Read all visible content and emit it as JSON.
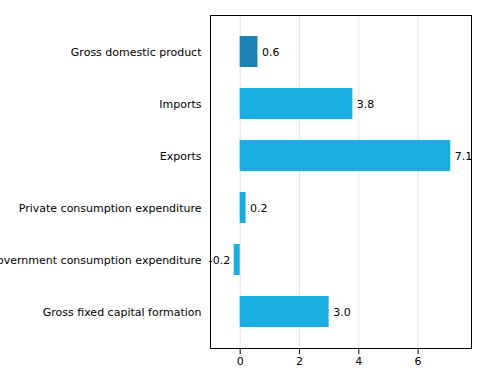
{
  "chart_data": {
    "type": "bar",
    "orientation": "horizontal",
    "categories": [
      "Gross fixed capital formation",
      "Government consumption expenditure",
      "Private consumption expenditure",
      "Exports",
      "Imports",
      "Gross domestic product"
    ],
    "values": [
      3.0,
      -0.2,
      0.2,
      7.1,
      3.8,
      0.6
    ],
    "value_labels": [
      "3.0",
      "-0.2",
      "0.2",
      "7.1",
      "3.8",
      "0.6"
    ],
    "colors": [
      "#1aaee0",
      "#1aaee0",
      "#1aaee0",
      "#1aaee0",
      "#1aaee0",
      "#1a82b4"
    ],
    "xlim": [
      -1.0,
      7.8
    ],
    "xticks": [
      0,
      2,
      4,
      6
    ],
    "grid": true,
    "data_labels": true
  }
}
